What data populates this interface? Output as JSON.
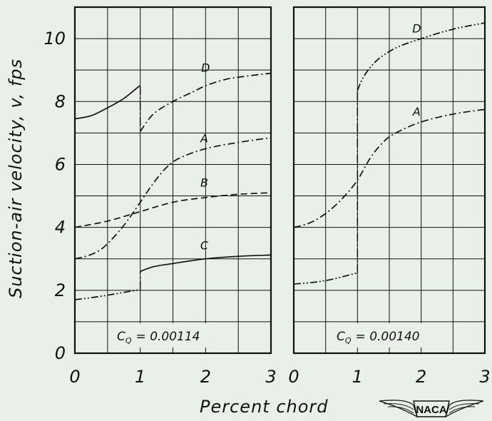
{
  "chart_data": [
    {
      "type": "line",
      "annotation": "C_Q = 0.00114",
      "annotation_sub": "Q",
      "annotation_main": "C",
      "annotation_value": "= 0.00114",
      "xlim": [
        0,
        3
      ],
      "ylim": [
        0,
        11
      ],
      "xticks": [
        "0",
        "1",
        "2",
        "3"
      ],
      "yticks": [
        "0",
        "2",
        "4",
        "6",
        "8",
        "10"
      ],
      "grid": true,
      "series": [
        {
          "name": "D",
          "style": "solid",
          "x": [
            0,
            0.25,
            0.5,
            0.75,
            0.99
          ],
          "y": [
            7.45,
            7.55,
            7.8,
            8.1,
            8.5
          ]
        },
        {
          "name": "D",
          "style": "dashdot",
          "x": [
            1.0,
            1.2,
            1.5,
            1.8,
            2.0,
            2.3,
            2.6,
            3.0
          ],
          "y": [
            7.05,
            7.6,
            8.0,
            8.3,
            8.5,
            8.7,
            8.8,
            8.9
          ]
        },
        {
          "name": "A",
          "style": "dashdot",
          "x": [
            0,
            0.2,
            0.4,
            0.6,
            0.8,
            1.0,
            1.2,
            1.4,
            1.6,
            2.0,
            2.5,
            3.0
          ],
          "y": [
            3.0,
            3.1,
            3.3,
            3.7,
            4.2,
            4.8,
            5.4,
            5.9,
            6.2,
            6.5,
            6.7,
            6.85
          ]
        },
        {
          "name": "B",
          "style": "dashed",
          "x": [
            0,
            0.5,
            1.0,
            1.5,
            2.0,
            2.5,
            3.0
          ],
          "y": [
            4.0,
            4.2,
            4.5,
            4.8,
            4.95,
            5.05,
            5.1
          ]
        },
        {
          "name": "C",
          "style": "dashdotdot",
          "x": [
            0,
            0.3,
            0.6,
            0.99
          ],
          "y": [
            1.7,
            1.78,
            1.88,
            2.02
          ]
        },
        {
          "name": "C",
          "style": "solid",
          "x": [
            1.0,
            1.2,
            1.5,
            2.0,
            2.5,
            3.0
          ],
          "y": [
            2.6,
            2.75,
            2.85,
            3.0,
            3.08,
            3.12
          ]
        }
      ],
      "discontinuities": [
        {
          "x": 1.0,
          "from": 8.5,
          "to": 7.05
        },
        {
          "x": 1.0,
          "from": 2.02,
          "to": 2.6
        }
      ],
      "curve_labels": [
        {
          "text": "D",
          "x": 2.0,
          "y": 8.95
        },
        {
          "text": "A",
          "x": 1.98,
          "y": 6.7
        },
        {
          "text": "B",
          "x": 1.98,
          "y": 5.3
        },
        {
          "text": "C",
          "x": 1.98,
          "y": 3.3
        }
      ]
    },
    {
      "type": "line",
      "annotation": "C_Q = 0.00140",
      "annotation_sub": "Q",
      "annotation_main": "C",
      "annotation_value": "= 0.00140",
      "xlim": [
        0,
        3
      ],
      "ylim": [
        0,
        11
      ],
      "xticks": [
        "0",
        "1",
        "2",
        "3"
      ],
      "grid": true,
      "series": [
        {
          "name": "D",
          "style": "dashdotdot",
          "x": [
            1.0,
            1.1,
            1.3,
            1.6,
            2.0,
            2.5,
            3.0
          ],
          "y": [
            8.35,
            8.8,
            9.3,
            9.7,
            10.0,
            10.3,
            10.5
          ]
        },
        {
          "name": "A",
          "style": "dashdot",
          "x": [
            0,
            0.2,
            0.4,
            0.6,
            0.8,
            1.0,
            1.2,
            1.4,
            1.6,
            2.0,
            2.5,
            3.0
          ],
          "y": [
            4.0,
            4.1,
            4.3,
            4.6,
            5.0,
            5.5,
            6.2,
            6.7,
            7.0,
            7.35,
            7.6,
            7.75
          ]
        },
        {
          "name": "",
          "style": "dashdotdot",
          "x": [
            0,
            0.3,
            0.6,
            0.99
          ],
          "y": [
            2.2,
            2.25,
            2.35,
            2.55
          ]
        }
      ],
      "discontinuities": [
        {
          "x": 1.0,
          "from": 2.55,
          "to": 8.35
        }
      ],
      "curve_labels": [
        {
          "text": "D",
          "x": 1.93,
          "y": 10.2
        },
        {
          "text": "A",
          "x": 1.93,
          "y": 7.55
        }
      ]
    }
  ],
  "axes": {
    "ylabel": "Suction-air velocity, v, fps",
    "xlabel": "Percent chord"
  },
  "emblem": {
    "text": "NACA"
  },
  "colors": {
    "background": "#e9f0ea",
    "ink": "#111111"
  }
}
